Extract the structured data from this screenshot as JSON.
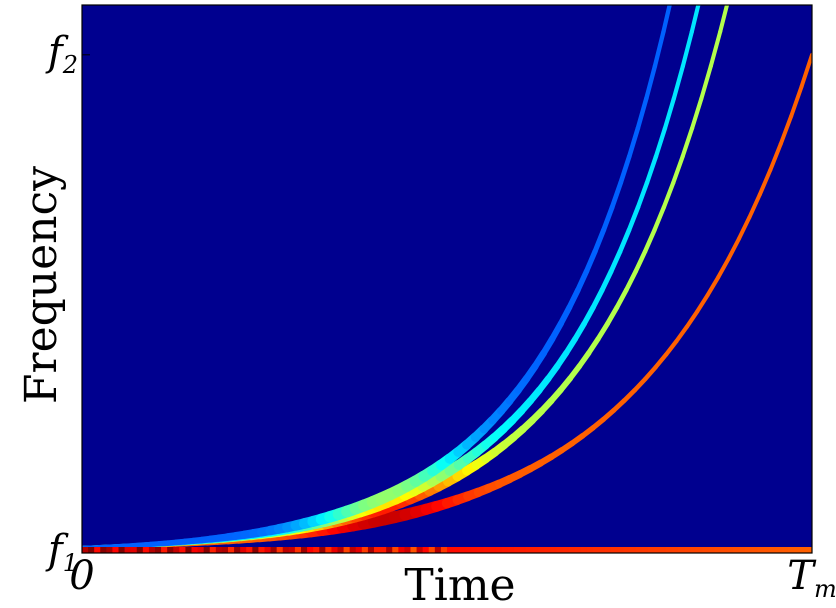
{
  "chart_data": {
    "type": "heatmap",
    "title": "",
    "xlabel": "Time",
    "ylabel": "Frequency",
    "x_ticks": [
      {
        "value": 0,
        "label": "0"
      },
      {
        "value": 1,
        "label": "T",
        "sub": "m"
      }
    ],
    "y_ticks": [
      {
        "value": 0,
        "label": "f",
        "sub": "1"
      },
      {
        "value": 1,
        "label": "f",
        "sub": "2"
      }
    ],
    "xlim": [
      0,
      1
    ],
    "ylim": [
      0,
      1.1
    ],
    "colormap": "jet",
    "background_color": "#00008f",
    "harmonics": [
      {
        "name": "",
        "end_time": 1.0,
        "end_freq": 1.0,
        "intensity": 0.78
      },
      {
        "name": "",
        "end_time": 0.9,
        "end_freq": 1.2,
        "intensity": 0.55
      },
      {
        "name": "",
        "end_time": 0.86,
        "end_freq": 1.2,
        "intensity": 0.35
      },
      {
        "name": "",
        "end_time": 0.82,
        "end_freq": 1.2,
        "intensity": 0.22
      }
    ],
    "baseline": {
      "freq": 0.0,
      "intensity_start": 0.95,
      "intensity_end": 0.78
    }
  }
}
